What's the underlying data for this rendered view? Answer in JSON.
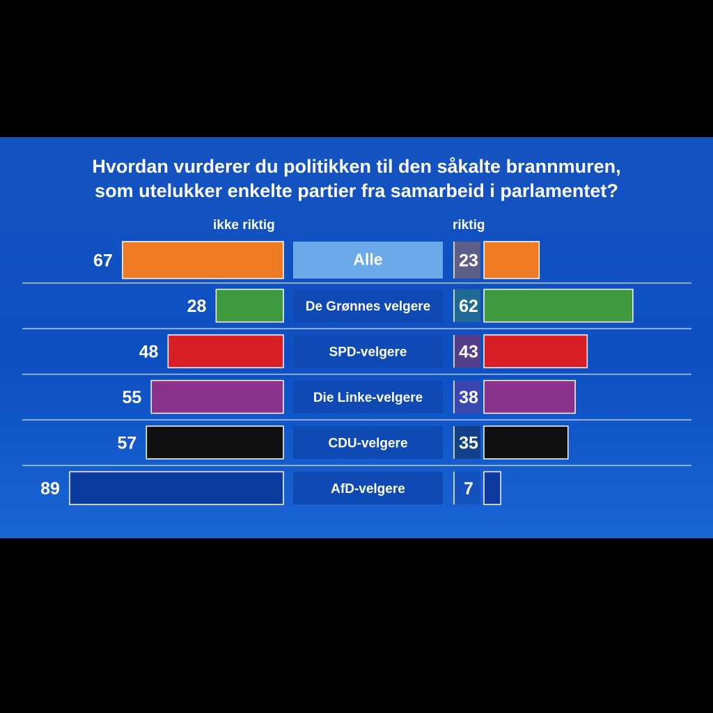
{
  "colors": {
    "background": "#0d4fc2",
    "category_box": "#0f49b3",
    "category_box_all": "#6aaae8",
    "divider": "#b9cdf0"
  },
  "chart_data": {
    "type": "bar",
    "title": "Hvordan vurderer du politikken til den såkalte brannmuren, som utelukker enkelte partier fra samarbeid i parlamentet?",
    "title_lines": [
      "Hvordan vurderer du politikken til den såkalte brannmuren,",
      "som utelukker enkelte partier fra samarbeid i parlamentet?"
    ],
    "layout": "diverging-horizontal",
    "categories": [
      "Alle",
      "De Grønnes velgere",
      "SPD-velgere",
      "Die Linke-velgere",
      "CDU-velgere",
      "AfD-velgere"
    ],
    "category_colors": [
      "#ee7b23",
      "#3f9a3f",
      "#d61f26",
      "#8a318c",
      "#111111",
      "#0d3a9e"
    ],
    "series": [
      {
        "name": "ikke riktig",
        "values": [
          67,
          28,
          48,
          55,
          57,
          89
        ]
      },
      {
        "name": "riktig",
        "values": [
          23,
          62,
          43,
          38,
          35,
          7
        ]
      }
    ],
    "xlim": [
      0,
      100
    ],
    "grid": false,
    "legend": "column headers above bars"
  }
}
